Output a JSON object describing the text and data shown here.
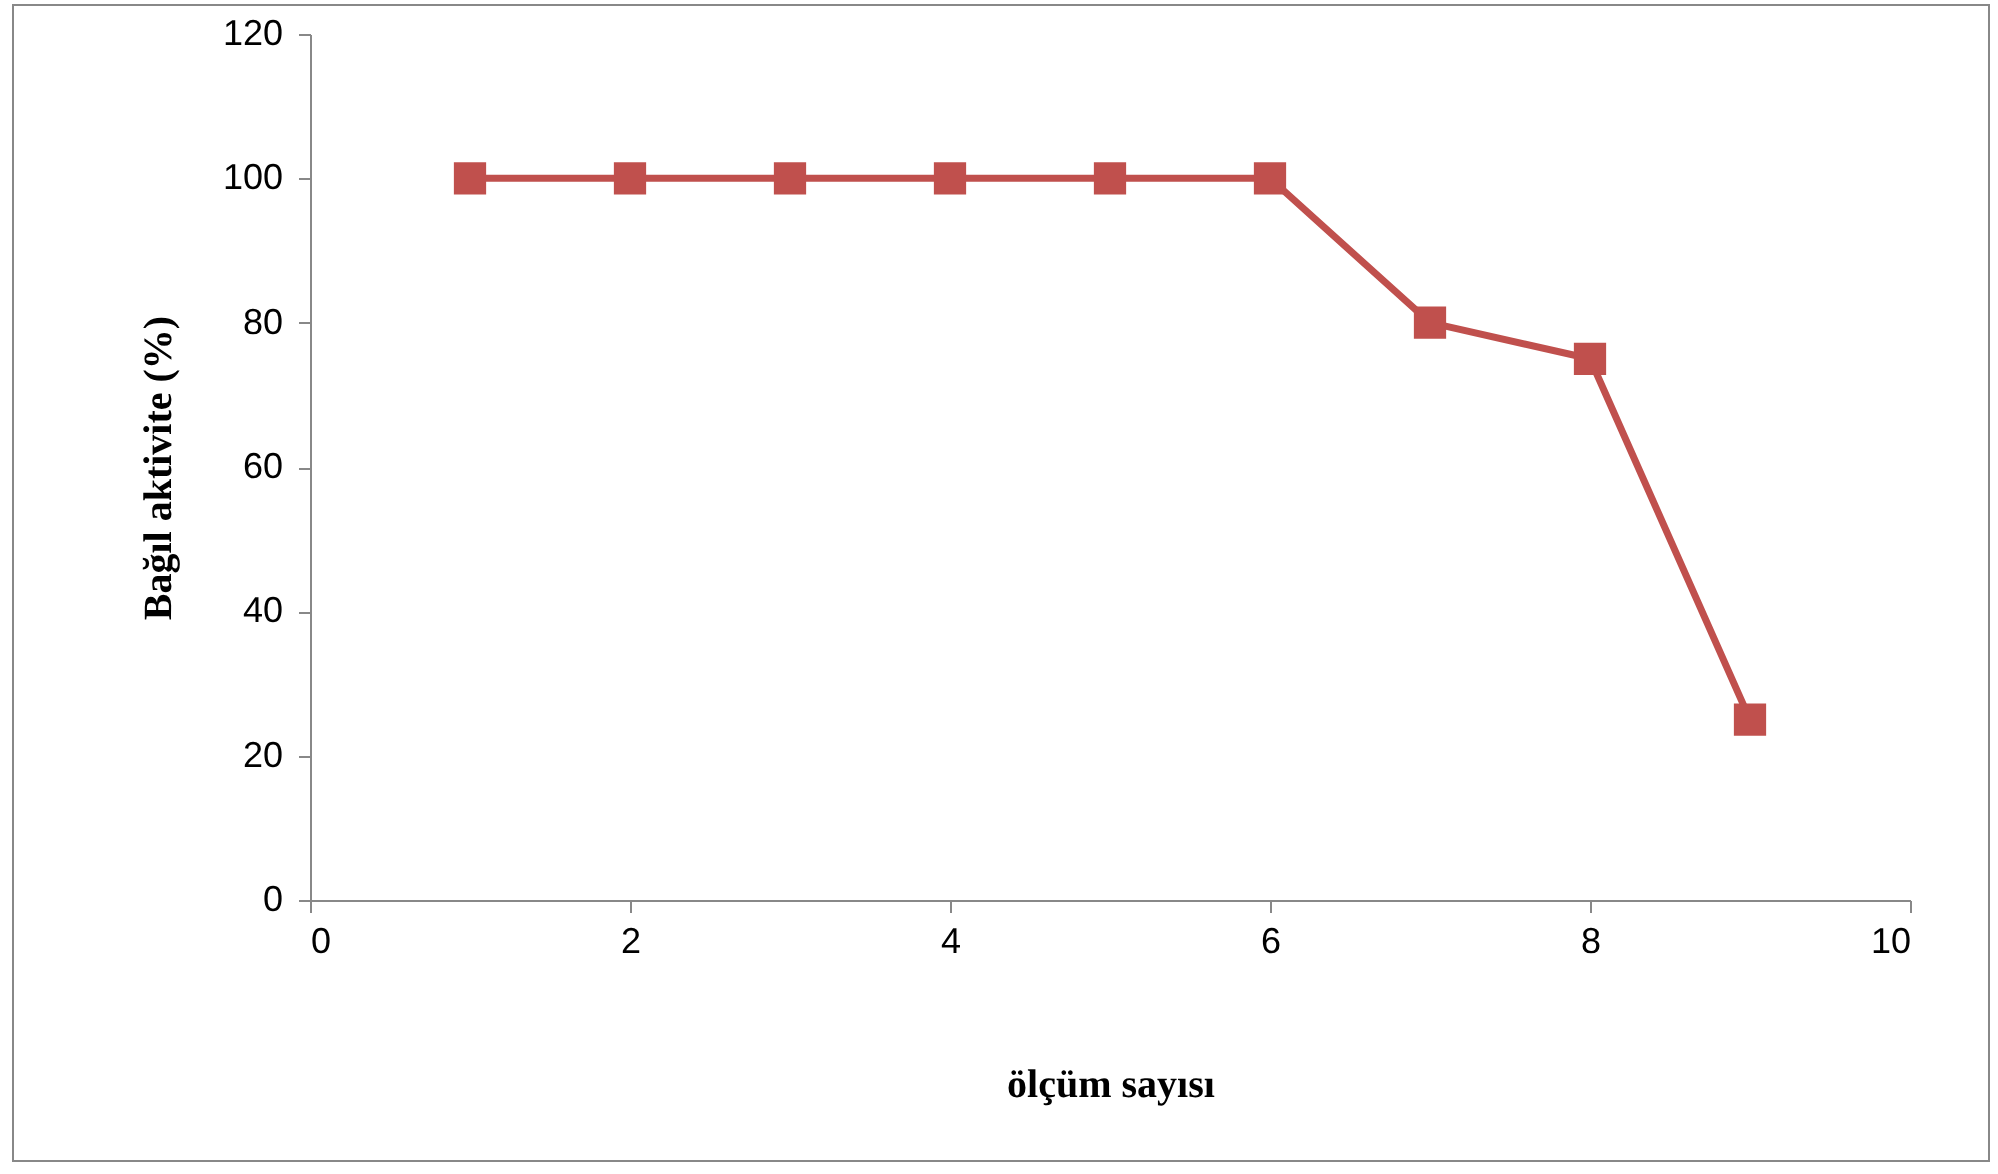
{
  "chart_data": {
    "type": "line",
    "xlabel": "ölçüm sayısı",
    "ylabel": "Bağıl aktivite (%)",
    "x": [
      1,
      2,
      3,
      4,
      5,
      6,
      7,
      8,
      9
    ],
    "series": [
      {
        "color": "#c0504d",
        "values": [
          100,
          100,
          100,
          100,
          100,
          100,
          80,
          75,
          25
        ]
      }
    ],
    "xlim": [
      0,
      10
    ],
    "xticks": [
      0,
      2,
      4,
      6,
      8,
      10
    ],
    "ylim": [
      0,
      120
    ],
    "yticks": [
      0,
      20,
      40,
      60,
      80,
      100,
      120
    ],
    "grid": false,
    "marker": "square",
    "line_style": "solid"
  }
}
